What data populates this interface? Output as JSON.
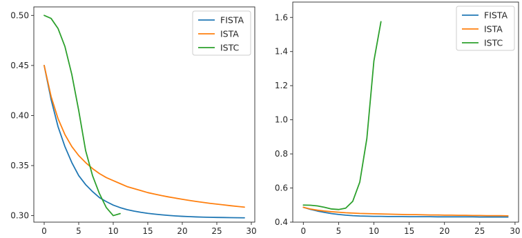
{
  "colors": {
    "FISTA": "#1f77b4",
    "ISTA": "#ff7f0e",
    "ISTC": "#2ca02c",
    "axes": "#262626",
    "legend_border": "#cccccc"
  },
  "chart_data": [
    {
      "type": "line",
      "title": "",
      "xlabel": "",
      "ylabel": "",
      "xlim": [
        -1.5,
        30.5
      ],
      "ylim": [
        0.2935,
        0.5085
      ],
      "xticks": [
        0,
        5,
        10,
        15,
        20,
        25,
        30
      ],
      "yticks": [
        0.3,
        0.35,
        0.4,
        0.45,
        0.5
      ],
      "ytick_labels": [
        "0.30",
        "0.35",
        "0.40",
        "0.45",
        "0.50"
      ],
      "grid": false,
      "legend_position": "top-right",
      "series": [
        {
          "name": "FISTA",
          "x": [
            0,
            1,
            2,
            3,
            4,
            5,
            6,
            7,
            8,
            9,
            10,
            11,
            12,
            13,
            14,
            15,
            16,
            17,
            18,
            19,
            20,
            21,
            22,
            23,
            24,
            25,
            26,
            27,
            28,
            29
          ],
          "y": [
            0.45,
            0.416,
            0.389,
            0.369,
            0.353,
            0.34,
            0.331,
            0.324,
            0.318,
            0.314,
            0.3105,
            0.308,
            0.306,
            0.3045,
            0.3033,
            0.3023,
            0.3015,
            0.3008,
            0.3002,
            0.2997,
            0.2993,
            0.299,
            0.2987,
            0.2985,
            0.2983,
            0.2982,
            0.2981,
            0.298,
            0.2979,
            0.2978
          ]
        },
        {
          "name": "ISTA",
          "x": [
            0,
            1,
            2,
            3,
            4,
            5,
            6,
            7,
            8,
            9,
            10,
            11,
            12,
            13,
            14,
            15,
            16,
            17,
            18,
            19,
            20,
            21,
            22,
            23,
            24,
            25,
            26,
            27,
            28,
            29
          ],
          "y": [
            0.45,
            0.419,
            0.397,
            0.381,
            0.369,
            0.36,
            0.353,
            0.347,
            0.342,
            0.338,
            0.335,
            0.332,
            0.329,
            0.327,
            0.325,
            0.323,
            0.3215,
            0.32,
            0.3187,
            0.3175,
            0.3163,
            0.3152,
            0.3142,
            0.3132,
            0.3123,
            0.3115,
            0.3107,
            0.3099,
            0.3092,
            0.3085
          ]
        },
        {
          "name": "ISTC",
          "x": [
            0,
            1,
            2,
            3,
            4,
            5,
            6,
            7,
            8,
            9,
            10,
            11
          ],
          "y": [
            0.5,
            0.497,
            0.487,
            0.469,
            0.441,
            0.405,
            0.365,
            0.34,
            0.322,
            0.308,
            0.3,
            0.302
          ]
        }
      ]
    },
    {
      "type": "line",
      "title": "",
      "xlabel": "",
      "ylabel": "",
      "xlim": [
        -1.5,
        30.5
      ],
      "ylim": [
        0.4,
        1.69
      ],
      "xticks": [
        0,
        5,
        10,
        15,
        20,
        25,
        30
      ],
      "yticks": [
        0.4,
        0.6,
        0.8,
        1.0,
        1.2,
        1.4,
        1.6
      ],
      "ytick_labels": [
        "0.4",
        "0.6",
        "0.8",
        "1.0",
        "1.2",
        "1.4",
        "1.6"
      ],
      "grid": false,
      "legend_position": "top-right",
      "series": [
        {
          "name": "FISTA",
          "x": [
            0,
            1,
            2,
            3,
            4,
            5,
            6,
            7,
            8,
            9,
            10,
            11,
            12,
            13,
            14,
            15,
            16,
            17,
            18,
            19,
            20,
            21,
            22,
            23,
            24,
            25,
            26,
            27,
            28,
            29
          ],
          "y": [
            0.487,
            0.475,
            0.465,
            0.457,
            0.45,
            0.445,
            0.441,
            0.438,
            0.436,
            0.435,
            0.434,
            0.434,
            0.433,
            0.433,
            0.433,
            0.432,
            0.432,
            0.432,
            0.432,
            0.431,
            0.431,
            0.431,
            0.431,
            0.431,
            0.431,
            0.43,
            0.43,
            0.43,
            0.43,
            0.43
          ]
        },
        {
          "name": "ISTA",
          "x": [
            0,
            1,
            2,
            3,
            4,
            5,
            6,
            7,
            8,
            9,
            10,
            11,
            12,
            13,
            14,
            15,
            16,
            17,
            18,
            19,
            20,
            21,
            22,
            23,
            24,
            25,
            26,
            27,
            28,
            29
          ],
          "y": [
            0.487,
            0.477,
            0.47,
            0.465,
            0.461,
            0.458,
            0.455,
            0.453,
            0.451,
            0.45,
            0.449,
            0.448,
            0.447,
            0.446,
            0.445,
            0.444,
            0.444,
            0.443,
            0.442,
            0.442,
            0.441,
            0.441,
            0.44,
            0.44,
            0.439,
            0.439,
            0.438,
            0.438,
            0.438,
            0.437
          ]
        },
        {
          "name": "ISTC",
          "x": [
            0,
            1,
            2,
            3,
            4,
            5,
            6,
            7,
            8,
            9,
            10,
            11
          ],
          "y": [
            0.5,
            0.499,
            0.495,
            0.487,
            0.477,
            0.474,
            0.482,
            0.522,
            0.635,
            0.89,
            1.345,
            1.575
          ]
        }
      ]
    }
  ]
}
